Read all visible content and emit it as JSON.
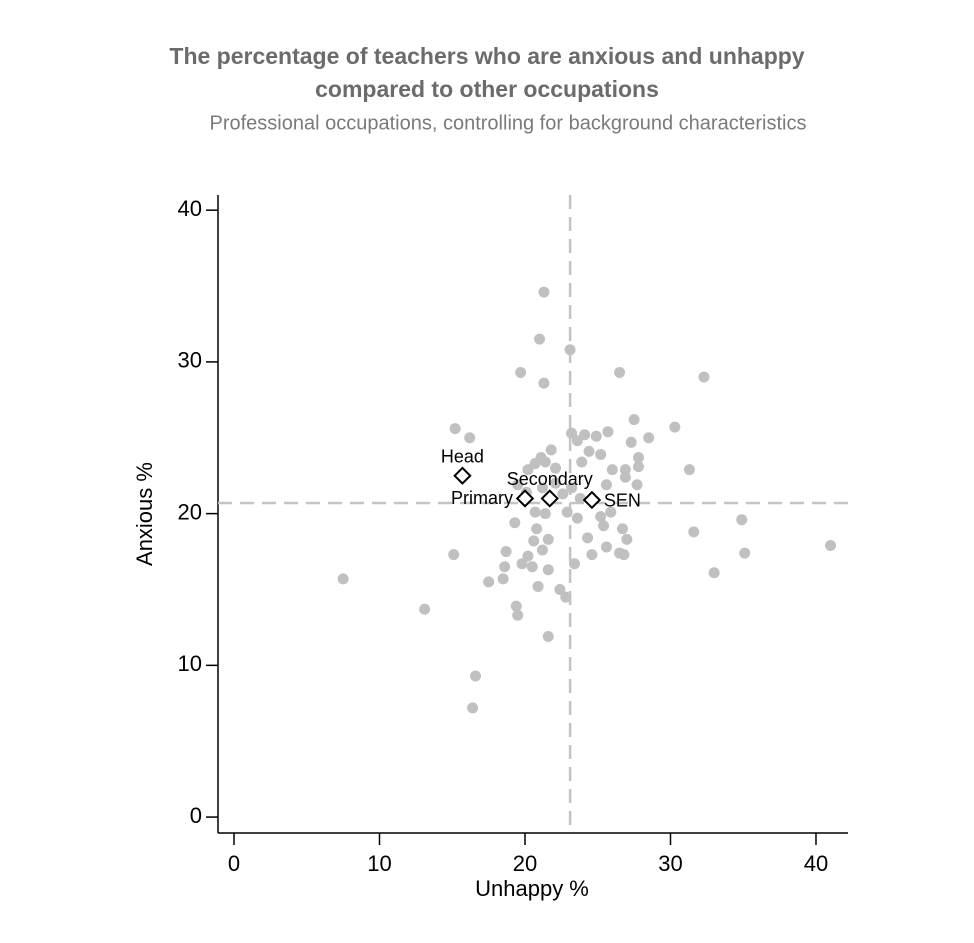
{
  "chart_data": {
    "type": "scatter",
    "title": [
      "The percentage of teachers who are anxious and unhappy",
      "compared to other occupations"
    ],
    "subtitle": "Professional occupations, controlling for background characteristics",
    "x_label": "Unhappy %",
    "y_label": "Anxious %",
    "xlim": [
      -1.1,
      42.2
    ],
    "ylim": [
      -1.05,
      41
    ],
    "xticks": [
      0,
      10,
      20,
      30,
      40
    ],
    "yticks": [
      0,
      10,
      20,
      30,
      40
    ],
    "color": "#c0c0c0",
    "reference_lines": {
      "x": 23.1,
      "y": 20.7
    },
    "points": {
      "x": [
        21.3,
        21.0,
        23.1,
        19.7,
        21.3,
        26.5,
        32.3,
        15.2,
        16.2,
        30.3,
        27.5,
        25.7,
        28.5,
        23.2,
        24.1,
        24.9,
        23.6,
        24.4,
        25.2,
        21.8,
        21.1,
        20.7,
        21.4,
        22.1,
        23.9,
        26.0,
        26.9,
        27.8,
        27.8,
        27.3,
        31.3,
        26.9,
        27.7,
        25.6,
        20.2,
        19.5,
        20.1,
        21.2,
        22.1,
        22.6,
        23.2,
        23.8,
        22.9,
        23.6,
        25.2,
        25.4,
        25.9,
        26.7,
        27.0,
        24.3,
        21.4,
        20.7,
        19.3,
        20.8,
        21.6,
        20.6,
        18.7,
        21.2,
        20.2,
        19.8,
        20.5,
        21.6,
        23.4,
        24.6,
        25.6,
        26.5,
        26.8,
        15.1,
        18.6,
        17.5,
        18.5,
        20.9,
        22.4,
        22.8,
        19.4,
        19.5,
        21.6,
        16.6,
        16.4,
        7.5,
        13.1,
        31.6,
        34.9,
        35.1,
        33.0,
        41.0
      ],
      "y": [
        34.6,
        31.5,
        30.8,
        29.3,
        28.6,
        29.3,
        29.0,
        25.6,
        25.0,
        25.7,
        26.2,
        25.4,
        25.0,
        25.3,
        25.2,
        25.1,
        24.8,
        24.1,
        23.9,
        24.2,
        23.7,
        23.3,
        23.4,
        23.0,
        23.4,
        22.9,
        22.9,
        23.1,
        23.7,
        24.7,
        22.9,
        22.4,
        21.9,
        21.9,
        22.9,
        21.9,
        21.4,
        21.7,
        22.0,
        21.3,
        21.7,
        21.0,
        20.1,
        19.7,
        19.8,
        19.2,
        20.1,
        19.0,
        18.3,
        18.4,
        20.0,
        20.1,
        19.4,
        19.0,
        18.3,
        18.2,
        17.5,
        17.6,
        17.2,
        16.7,
        16.5,
        16.3,
        16.7,
        17.3,
        17.8,
        17.4,
        17.3,
        17.3,
        16.5,
        15.5,
        15.7,
        15.2,
        15.0,
        14.5,
        13.9,
        13.3,
        11.9,
        9.3,
        7.2,
        15.7,
        13.7,
        18.8,
        19.6,
        17.4,
        16.1,
        17.9
      ]
    },
    "highlighted": {
      "labels": [
        "Head",
        "Primary",
        "Secondary",
        "SEN"
      ],
      "x": [
        15.7,
        20.0,
        21.7,
        24.6
      ],
      "y": [
        22.5,
        21.0,
        21.0,
        20.9
      ]
    }
  }
}
